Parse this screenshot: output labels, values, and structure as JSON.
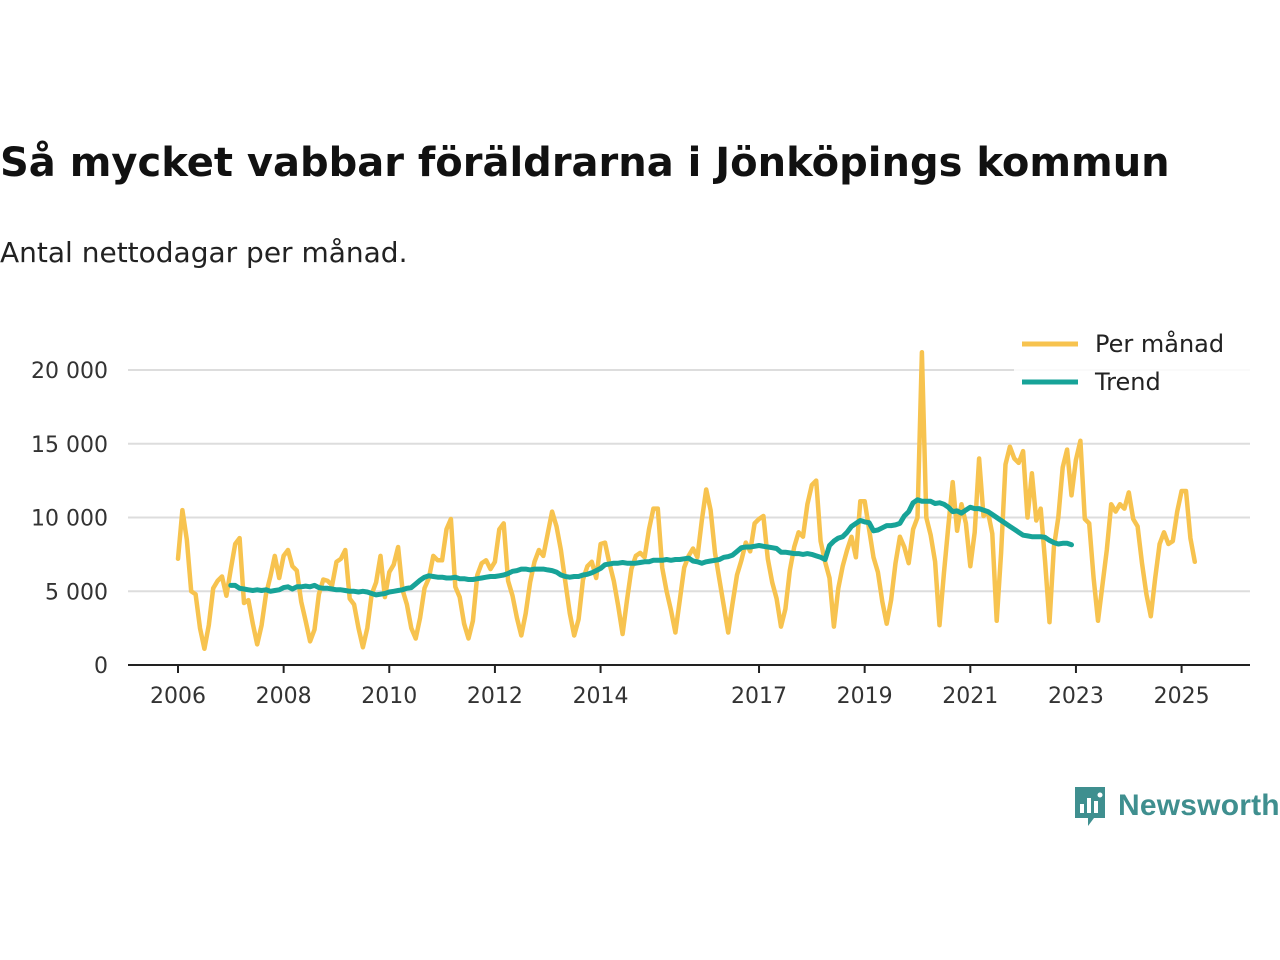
{
  "title": "Så mycket vabbar föräldrarna i Jönköpings kommun",
  "subtitle": "Antal nettodagar per månad.",
  "brand": {
    "name": "Newsworthy",
    "color": "#3f8f8f"
  },
  "chart_data": {
    "type": "line",
    "ylim": [
      0,
      20000
    ],
    "yticks": [
      0,
      5000,
      10000,
      15000,
      20000
    ],
    "ytick_labels": [
      "0",
      "5 000",
      "10 000",
      "15 000",
      "20 000"
    ],
    "xticks": [
      2006,
      2008,
      2010,
      2012,
      2014,
      2017,
      2019,
      2021,
      2023,
      2025
    ],
    "xtick_labels": [
      "2006",
      "2008",
      "2010",
      "2012",
      "2014",
      "2017",
      "2019",
      "2021",
      "2023",
      "2025"
    ],
    "grid": true,
    "legend_position": "top-right",
    "series": [
      {
        "name": "Per månad",
        "color": "#f7c34f",
        "start": [
          2006,
          1
        ],
        "values": [
          7200,
          10500,
          8500,
          5000,
          4800,
          2500,
          1100,
          2700,
          5200,
          5700,
          6000,
          4700,
          6500,
          8200,
          8600,
          4200,
          4400,
          2800,
          1400,
          2700,
          4800,
          6000,
          7400,
          5900,
          7400,
          7800,
          6700,
          6400,
          4300,
          3000,
          1600,
          2400,
          4800,
          5800,
          5700,
          5400,
          7000,
          7200,
          7800,
          4500,
          4100,
          2500,
          1200,
          2500,
          4800,
          5600,
          7400,
          4600,
          6300,
          6800,
          8000,
          5100,
          4100,
          2500,
          1800,
          3200,
          5200,
          5900,
          7400,
          7100,
          7100,
          9200,
          9900,
          5300,
          4600,
          2800,
          1800,
          3000,
          6100,
          6900,
          7100,
          6500,
          7000,
          9200,
          9600,
          5700,
          4700,
          3200,
          2000,
          3500,
          5600,
          7000,
          7800,
          7400,
          8900,
          10400,
          9400,
          7800,
          5600,
          3500,
          2000,
          3100,
          5800,
          6700,
          7000,
          5900,
          8200,
          8300,
          6900,
          5700,
          4000,
          2100,
          4400,
          6500,
          7400,
          7600,
          7300,
          9200,
          10600,
          10600,
          6600,
          5000,
          3700,
          2200,
          4400,
          6600,
          7400,
          7900,
          7300,
          9800,
          11900,
          10500,
          7600,
          5800,
          4000,
          2200,
          4200,
          6100,
          7100,
          8300,
          7700,
          9600,
          9900,
          10100,
          7200,
          5600,
          4500,
          2600,
          3800,
          6400,
          8000,
          9000,
          8700,
          10900,
          12200,
          12500,
          8400,
          7000,
          5900,
          2600,
          5200,
          6700,
          7800,
          8700,
          7300,
          11100,
          11100,
          9200,
          7300,
          6300,
          4300,
          2800,
          4400,
          6900,
          8700,
          8000,
          6900,
          9200,
          10000,
          21200,
          10000,
          8800,
          7000,
          2700,
          6200,
          9400,
          12400,
          9100,
          10900,
          9600,
          6700,
          9000,
          14000,
          10100,
          10400,
          8900,
          3000,
          7600,
          13600,
          14800,
          14000,
          13700,
          14500,
          10000,
          13000,
          9800,
          10600,
          7000,
          2900,
          8000,
          10000,
          13400,
          14600,
          11500,
          13900,
          15200,
          9900,
          9600,
          5900,
          3000,
          5400,
          7800,
          10900,
          10400,
          10900,
          10600,
          11700,
          9900,
          9400,
          6900,
          4800,
          3300,
          5900,
          8200,
          9000,
          8200,
          8400,
          10400,
          11800,
          11800,
          8600,
          7000
        ]
      },
      {
        "name": "Trend",
        "color": "#17a398",
        "start": [
          2007,
          1
        ],
        "values": [
          5400,
          5400,
          5200,
          5150,
          5100,
          5050,
          5100,
          5050,
          5100,
          5000,
          5050,
          5100,
          5250,
          5300,
          5150,
          5300,
          5300,
          5350,
          5300,
          5400,
          5250,
          5200,
          5200,
          5150,
          5100,
          5100,
          5050,
          5000,
          5000,
          4950,
          5000,
          4950,
          4850,
          4750,
          4800,
          4850,
          4950,
          5000,
          5050,
          5100,
          5200,
          5250,
          5500,
          5750,
          5950,
          6050,
          6000,
          5950,
          5950,
          5900,
          5900,
          5950,
          5850,
          5850,
          5800,
          5800,
          5850,
          5900,
          5950,
          6000,
          6000,
          6050,
          6100,
          6200,
          6350,
          6400,
          6500,
          6500,
          6450,
          6500,
          6500,
          6500,
          6450,
          6400,
          6300,
          6100,
          6000,
          5950,
          6000,
          6000,
          6100,
          6150,
          6250,
          6400,
          6550,
          6800,
          6850,
          6900,
          6900,
          6950,
          6900,
          6900,
          6900,
          6950,
          7000,
          7000,
          7100,
          7100,
          7100,
          7150,
          7100,
          7150,
          7150,
          7200,
          7250,
          7050,
          7000,
          6900,
          7000,
          7050,
          7100,
          7150,
          7300,
          7350,
          7450,
          7700,
          7950,
          8000,
          8000,
          8050,
          8100,
          8050,
          8000,
          7950,
          7900,
          7650,
          7650,
          7600,
          7550,
          7550,
          7500,
          7550,
          7500,
          7400,
          7300,
          7150,
          8100,
          8400,
          8600,
          8700,
          9000,
          9400,
          9600,
          9800,
          9700,
          9650,
          9100,
          9150,
          9300,
          9450,
          9450,
          9500,
          9600,
          10100,
          10400,
          11000,
          11200,
          11100,
          11100,
          11100,
          10950,
          11000,
          10900,
          10700,
          10400,
          10450,
          10300,
          10500,
          10700,
          10600,
          10600,
          10500,
          10400,
          10200,
          10000,
          9800,
          9600,
          9400,
          9200,
          9000,
          8800,
          8750,
          8700,
          8700,
          8700,
          8650,
          8450,
          8300,
          8200,
          8250,
          8250,
          8150
        ]
      }
    ]
  }
}
